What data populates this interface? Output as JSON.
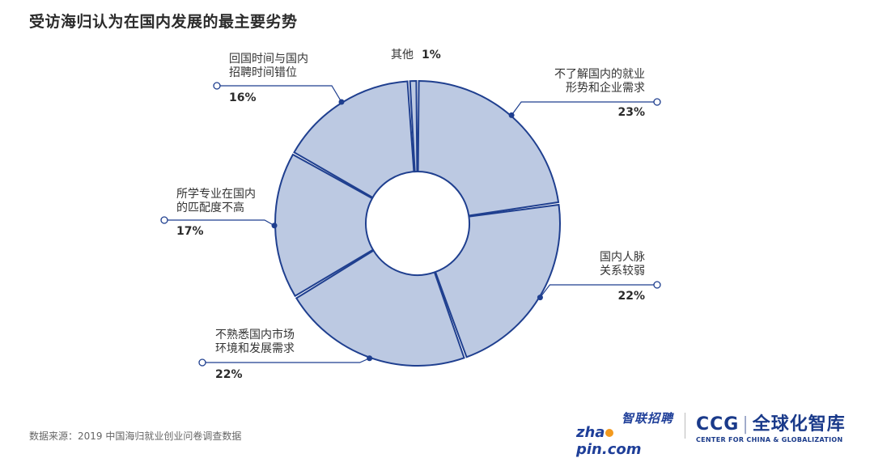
{
  "title": "受访海归认为在国内发展的最主要劣势",
  "source": "数据来源：2019 中国海归就业创业问卷调查数据",
  "logos": {
    "zhaopin_top": "智联招聘",
    "zhaopin_bottom_left": "zha",
    "zhaopin_bottom_right": "pin.com",
    "ccg_abbr": "CCG",
    "ccg_cn": "全球化智库",
    "ccg_en": "CENTER FOR CHINA & GLOBALIZATION"
  },
  "colors": {
    "segment_fill": "#bcc9e2",
    "segment_stroke": "#1f3f8f",
    "leader_line": "#1f3f8f"
  },
  "chart_data": {
    "type": "pie",
    "donut": true,
    "title": "受访海归认为在国内发展的最主要劣势",
    "slices": [
      {
        "label_lines": [
          "不了解国内的就业",
          "形势和企业需求"
        ],
        "value": 23,
        "pct_label": "23%"
      },
      {
        "label_lines": [
          "国内人脉",
          "关系较弱"
        ],
        "value": 22,
        "pct_label": "22%"
      },
      {
        "label_lines": [
          "不熟悉国内市场",
          "环境和发展需求"
        ],
        "value": 22,
        "pct_label": "22%"
      },
      {
        "label_lines": [
          "所学专业在国内",
          "的匹配度不高"
        ],
        "value": 17,
        "pct_label": "17%"
      },
      {
        "label_lines": [
          "回国时间与国内",
          "招聘时间错位"
        ],
        "value": 16,
        "pct_label": "16%"
      },
      {
        "label_lines": [
          "其他"
        ],
        "value": 1,
        "pct_label": "1%"
      }
    ]
  }
}
